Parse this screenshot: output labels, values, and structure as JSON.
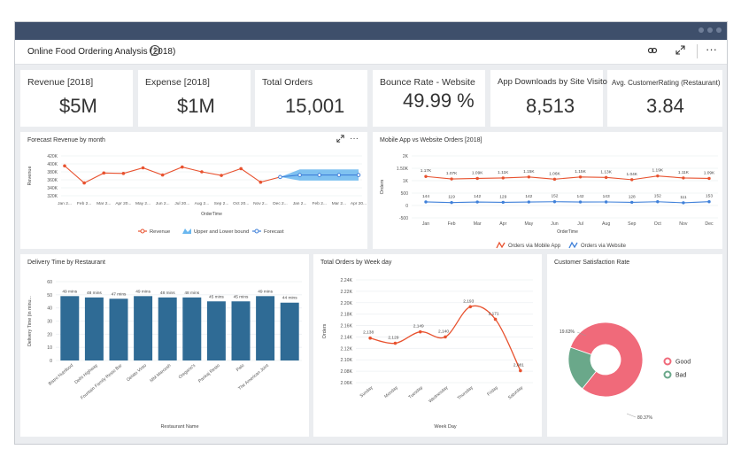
{
  "header": {
    "title": "Online Food Ordering Analysis (2018)",
    "info_icon": "info-icon",
    "link_icon": "link-icon",
    "expand_icon": "expand-icon",
    "more_icon": "more-icon",
    "more_glyph": "···"
  },
  "kpis": [
    {
      "label": "Revenue [2018]",
      "value": "$5M"
    },
    {
      "label": "Expense [2018]",
      "value": "$1M"
    },
    {
      "label": "Total Orders",
      "value": "15,001"
    },
    {
      "label": "Bounce Rate - Website",
      "value": "49.99 %"
    },
    {
      "label": "App Downloads by Site Visitors",
      "value": "8,513"
    },
    {
      "label": "Avg. CustomerRating (Restaurant)",
      "value": "3.84"
    }
  ],
  "forecast": {
    "title": "Forecast Revenue by month",
    "more_glyph": "···",
    "chart_data": {
      "type": "line",
      "x": [
        "Jan 2...",
        "Feb 2...",
        "Mar 2...",
        "Apr 20...",
        "May 2...",
        "Jun 2...",
        "Jul 20...",
        "Aug 2...",
        "Sep 2...",
        "Oct 20...",
        "Nov 2...",
        "Dec 2...",
        "Jan 2...",
        "Feb 2...",
        "Mar 2...",
        "Apr 20..."
      ],
      "series": [
        {
          "name": "Revenue",
          "color": "#e8522f",
          "values": [
            395,
            352,
            377,
            376,
            390,
            372,
            392,
            380,
            371,
            388,
            354,
            367,
            null,
            null,
            null,
            null
          ]
        },
        {
          "name": "Forecast",
          "color": "#3f80d9",
          "values": [
            null,
            null,
            null,
            null,
            null,
            null,
            null,
            null,
            null,
            null,
            null,
            367,
            372,
            372,
            372,
            372
          ]
        }
      ],
      "band": {
        "name": "Upper and Lower bound",
        "color": "#6ab7ef",
        "upper": [
          367,
          386,
          386,
          386,
          386
        ],
        "lower": [
          367,
          358,
          358,
          358,
          358
        ],
        "start_index": 11
      },
      "ylabel": "Revenue",
      "xlabel": "OrderTime",
      "yticks": [
        "420K",
        "400K",
        "380K",
        "360K",
        "340K",
        "320K"
      ],
      "ylim": [
        320,
        420
      ]
    }
  },
  "mobile": {
    "title": "Mobile App vs Website Orders [2018]",
    "chart_data": {
      "type": "line",
      "categories": [
        "Jan",
        "Feb",
        "Mar",
        "Apr",
        "May",
        "Jun",
        "Jul",
        "Aug",
        "Sep",
        "Oct",
        "Nov",
        "Dec"
      ],
      "series": [
        {
          "name": "Orders via Mobile App",
          "color": "#e8522f",
          "values": [
            1170,
            1070,
            1090,
            1110,
            1150,
            1060,
            1150,
            1130,
            1040,
            1190,
            1110,
            1090
          ],
          "labels": [
            "1.17K",
            "1.07K",
            "1.09K",
            "1.11K",
            "1.15K",
            "1.06K",
            "1.15K",
            "1.13K",
            "1.04K",
            "1.19K",
            "1.11K",
            "1.09K"
          ]
        },
        {
          "name": "Orders via Website",
          "color": "#3f80d9",
          "values": [
            144,
            119,
            142,
            129,
            142,
            152,
            142,
            143,
            128,
            152,
            111,
            153
          ],
          "labels": [
            "144",
            "119",
            "142",
            "129",
            "142",
            "152",
            "142",
            "143",
            "128",
            "152",
            "111",
            "153"
          ]
        }
      ],
      "ylabel": "Orders",
      "xlabel": "OrderTime",
      "yticks": [
        "2K",
        "1.50K",
        "1K",
        "500",
        "0",
        "-500"
      ],
      "ylim": [
        -500,
        2000
      ]
    }
  },
  "delivery": {
    "title": "Delivery Time by Restaurant",
    "chart_data": {
      "type": "bar",
      "categories": [
        "Bistro Nutrifood",
        "Delhi Highway",
        "Fountain Family Resto Bar",
        "Gelato Vinto",
        "MM Marcosh",
        "Oregano's",
        "Pankaj Resto",
        "Palo",
        "The American Joint",
        ""
      ],
      "values": [
        49,
        48,
        47,
        49,
        48,
        48,
        45,
        45,
        49,
        44
      ],
      "labels": [
        "49 mins",
        "48 mins",
        "47 mins",
        "49 mins",
        "48 mins",
        "48 mins",
        "45 mins",
        "45 mins",
        "49 mins",
        "44 mins"
      ],
      "color": "#2f6b95",
      "ylabel": "Delivery Time (in minu...",
      "xlabel": "Restaurant Name",
      "yticks": [
        "60",
        "50",
        "40",
        "30",
        "20",
        "10",
        "0"
      ],
      "ylim": [
        0,
        60
      ]
    }
  },
  "weekday": {
    "title": "Total Orders by Week day",
    "chart_data": {
      "type": "line",
      "categories": [
        "Sunday",
        "Monday",
        "Tuesday",
        "Wednesday",
        "Thursday",
        "Friday",
        "Saturday"
      ],
      "values": [
        2138,
        2129,
        2149,
        2140,
        2193,
        2171,
        2081
      ],
      "labels": [
        "2,138",
        "2,129",
        "2,149",
        "2,140",
        "2,193",
        "2,171",
        "2,081"
      ],
      "color": "#e8522f",
      "ylabel": "Orders",
      "xlabel": "Week Day",
      "yticks": [
        "2.24K",
        "2.22K",
        "2.20K",
        "2.18K",
        "2.16K",
        "2.14K",
        "2.12K",
        "2.10K",
        "2.08K",
        "2.06K"
      ],
      "ylim": [
        2060,
        2240
      ]
    }
  },
  "satisfaction": {
    "title": "Customer Satisfaction Rate",
    "chart_data": {
      "type": "pie",
      "slices": [
        {
          "name": "Good",
          "value": 80.37,
          "label": "80.37%",
          "color": "#f06a7a"
        },
        {
          "name": "Bad",
          "value": 19.63,
          "label": "19.63%",
          "color": "#6aa88a"
        }
      ]
    }
  }
}
